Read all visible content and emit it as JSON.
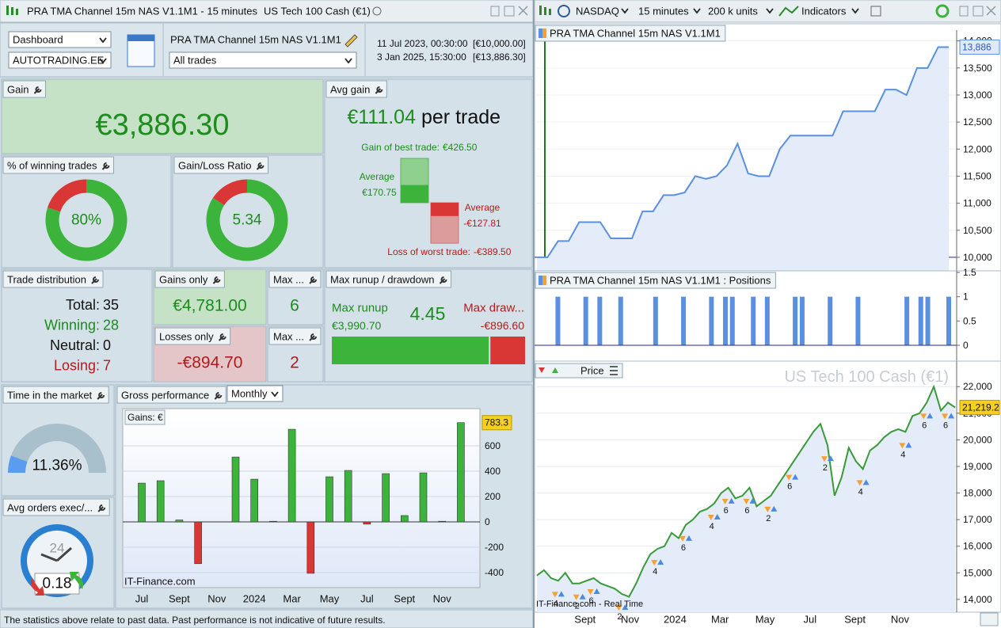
{
  "left": {
    "title": "PRA TMA Channel 15m NAS V1.1M1 - 15 minutes",
    "instrument": "US Tech 100 Cash (€1)",
    "view": "Dashboard",
    "account": "AUTOTRADING.EE",
    "strategy": "PRA TMA Channel 15m NAS V1.1M1",
    "trades_filter": "All trades",
    "start_date": "11 Jul 2023, 00:30:00",
    "start_capital": "[€10,000.00]",
    "end_date": "3 Jan 2025, 15:30:00",
    "end_capital": "[€13,886.30]",
    "gain": {
      "title": "Gain",
      "value": "€3,886.30"
    },
    "avg_gain": {
      "title": "Avg gain",
      "value": "€111.04",
      "unit": "per trade",
      "best": {
        "caption": "Gain of best trade:",
        "value": 426.5,
        "label": "€426.50"
      },
      "avg_win": {
        "caption": "Average",
        "value": 170.75,
        "label": "€170.75"
      },
      "avg_loss": {
        "caption": "Average",
        "value": -127.81,
        "label": "-€127.81"
      },
      "worst": {
        "caption": "Loss of worst trade:",
        "value": -389.5,
        "label": "-€389.50"
      }
    },
    "winning_trades": {
      "title": "% of winning trades",
      "value": 80,
      "label": "80%"
    },
    "gain_loss_ratio": {
      "title": "Gain/Loss Ratio",
      "value": 5.34
    },
    "trade_distribution": {
      "title": "Trade distribution",
      "rows": [
        {
          "label": "Total:",
          "value": 35
        },
        {
          "label": "Winning:",
          "value": 28
        },
        {
          "label": "Neutral:",
          "value": 0
        },
        {
          "label": "Losing:",
          "value": 7
        }
      ]
    },
    "gains_only": {
      "title": "Gains only",
      "value": "€4,781.00",
      "max_title": "Max ...",
      "max": 6
    },
    "losses_only": {
      "title": "Losses only",
      "value": "-€894.70",
      "max_title": "Max ...",
      "max": 2
    },
    "runup_drawdown": {
      "title": "Max runup / drawdown",
      "runup_caption": "Max runup",
      "runup": {
        "value": 3990.7,
        "label": "€3,990.70"
      },
      "ratio": 4.45,
      "drawdown_caption": "Max draw...",
      "drawdown": {
        "value": -896.6,
        "label": "-€896.60"
      }
    },
    "time_in_market": {
      "title": "Time in the market",
      "value": 11.36,
      "label": "11.36%"
    },
    "avg_orders": {
      "title": "Avg orders exec/...",
      "clock": 24,
      "value": 0.18
    },
    "gross_performance": {
      "title": "Gross performance",
      "period": "Monthly",
      "chart": {
        "type": "bar",
        "label": "Gains: €",
        "watermark": "IT-Finance.com",
        "categories": [
          "Jul",
          null,
          "Sept",
          null,
          "Nov",
          null,
          "2024",
          null,
          "Mar",
          null,
          "May",
          null,
          "Jul",
          null,
          "Sept",
          null,
          "Nov",
          null
        ],
        "values": [
          306,
          325,
          15,
          -330,
          0,
          512,
          337,
          5,
          731,
          -406,
          356,
          406,
          -18,
          381,
          50,
          387,
          5,
          783.3
        ],
        "ylim": [
          -519,
          894
        ],
        "yticks": [
          -400,
          -200,
          0,
          200,
          400,
          600
        ],
        "colors": {
          "gain": "#3cb43c",
          "loss": "#d93636"
        }
      }
    },
    "disclaimer": "The statistics above relate to past data. Past performance is not indicative of future results."
  },
  "right": {
    "exchange": "NASDAQ",
    "timeframe": "15 minutes",
    "units": "200 k units",
    "indicators": "Indicators",
    "months": [
      null,
      null,
      "Sept",
      null,
      "Nov",
      null,
      "2024",
      null,
      "Mar",
      null,
      "May",
      null,
      "Jul",
      null,
      "Sept",
      null,
      "Nov",
      null,
      null
    ],
    "equity": {
      "type": "line",
      "title": "PRA TMA Channel 15m NAS V1.1M1",
      "color": "#5b8fe0",
      "values": [
        10000,
        10000,
        10300,
        10300,
        10650,
        10650,
        10650,
        10350,
        10350,
        10350,
        10850,
        10850,
        11150,
        11150,
        11200,
        11500,
        11450,
        11500,
        11700,
        12100,
        11550,
        11500,
        11500,
        12000,
        12250,
        12250,
        12250,
        12250,
        12250,
        12700,
        12700,
        12700,
        12700,
        13100,
        13100,
        13000,
        13500,
        13500,
        13886,
        13886
      ],
      "ylim": [
        9750,
        14200
      ],
      "yticks": [
        {
          "value": 10000,
          "label": "10,000"
        },
        {
          "value": 10500,
          "label": "10,500"
        },
        {
          "value": 11000,
          "label": "11,000"
        },
        {
          "value": 11500,
          "label": "11,500"
        },
        {
          "value": 12000,
          "label": "12,000"
        },
        {
          "value": 12500,
          "label": "12,500"
        },
        {
          "value": 13000,
          "label": "13,000"
        },
        {
          "value": 13500,
          "label": "13,500"
        },
        {
          "value": 14000,
          "label": "14,000"
        }
      ],
      "last": {
        "value": 13886,
        "label": "13,886"
      }
    },
    "positions": {
      "type": "bar",
      "title": "PRA TMA Channel 15m NAS V1.1M1 : Positions",
      "color": "#5b8fe0",
      "values": [
        0,
        0,
        0,
        1,
        0,
        0,
        0,
        1,
        0,
        1,
        0,
        0,
        1,
        0,
        0,
        0,
        0,
        1,
        0,
        0,
        0,
        1,
        0,
        0,
        0,
        1,
        0,
        1,
        1,
        0,
        0,
        1,
        0,
        1,
        0,
        0,
        0,
        1,
        1,
        0,
        0,
        0,
        1,
        0,
        0,
        0,
        1,
        0,
        0,
        0,
        0,
        0,
        0,
        1,
        0,
        1,
        1,
        0,
        0,
        1
      ],
      "ylim": [
        0,
        1.5
      ],
      "yticks": [
        0,
        0.5,
        1,
        1.5
      ]
    },
    "price": {
      "type": "line",
      "title": "Price",
      "watermark": "US Tech 100 Cash (€1)",
      "color": "#3a9a3a",
      "source": "IT-Finance.com - Real Time",
      "values": [
        14900,
        15100,
        14800,
        14700,
        15000,
        14600,
        14600,
        14700,
        14800,
        14600,
        14500,
        14400,
        14200,
        14100,
        14600,
        15200,
        15700,
        15900,
        16000,
        16500,
        16300,
        16800,
        17000,
        17300,
        17400,
        17600,
        18000,
        18200,
        17800,
        17900,
        18200,
        17500,
        17700,
        17900,
        18300,
        18700,
        19100,
        19500,
        19900,
        20300,
        20600,
        19800,
        17900,
        18600,
        19700,
        19200,
        18900,
        19600,
        19800,
        20100,
        20300,
        20400,
        20300,
        20900,
        21000,
        21400,
        22000,
        21100,
        21400,
        21219.2
      ],
      "ylim": [
        13520,
        22900
      ],
      "yticks": [
        {
          "value": 14000,
          "label": "14,000"
        },
        {
          "value": 15000,
          "label": "15,000"
        },
        {
          "value": 16000,
          "label": "16,000"
        },
        {
          "value": 17000,
          "label": "17,000"
        },
        {
          "value": 18000,
          "label": "18,000"
        },
        {
          "value": 19000,
          "label": "19,000"
        },
        {
          "value": 20000,
          "label": "20,000"
        },
        {
          "value": 21000,
          "label": "21,000"
        },
        {
          "value": 22000,
          "label": "22,000"
        }
      ],
      "last": {
        "value": 21219.2,
        "label": "21,219.2"
      },
      "trades": [
        {
          "index": 3,
          "count": 4
        },
        {
          "index": 6,
          "count": 2
        },
        {
          "index": 8,
          "count": 6
        },
        {
          "index": 12,
          "count": 2
        },
        {
          "index": 17,
          "count": 4
        },
        {
          "index": 21,
          "count": 6
        },
        {
          "index": 25,
          "count": 4
        },
        {
          "index": 27,
          "count": 6
        },
        {
          "index": 30,
          "count": 6
        },
        {
          "index": 33,
          "count": 2
        },
        {
          "index": 36,
          "count": 6
        },
        {
          "index": 41,
          "count": 2
        },
        {
          "index": 46,
          "count": 4
        },
        {
          "index": 52,
          "count": 4
        },
        {
          "index": 55,
          "count": 6
        },
        {
          "index": 58,
          "count": 6
        }
      ]
    }
  }
}
